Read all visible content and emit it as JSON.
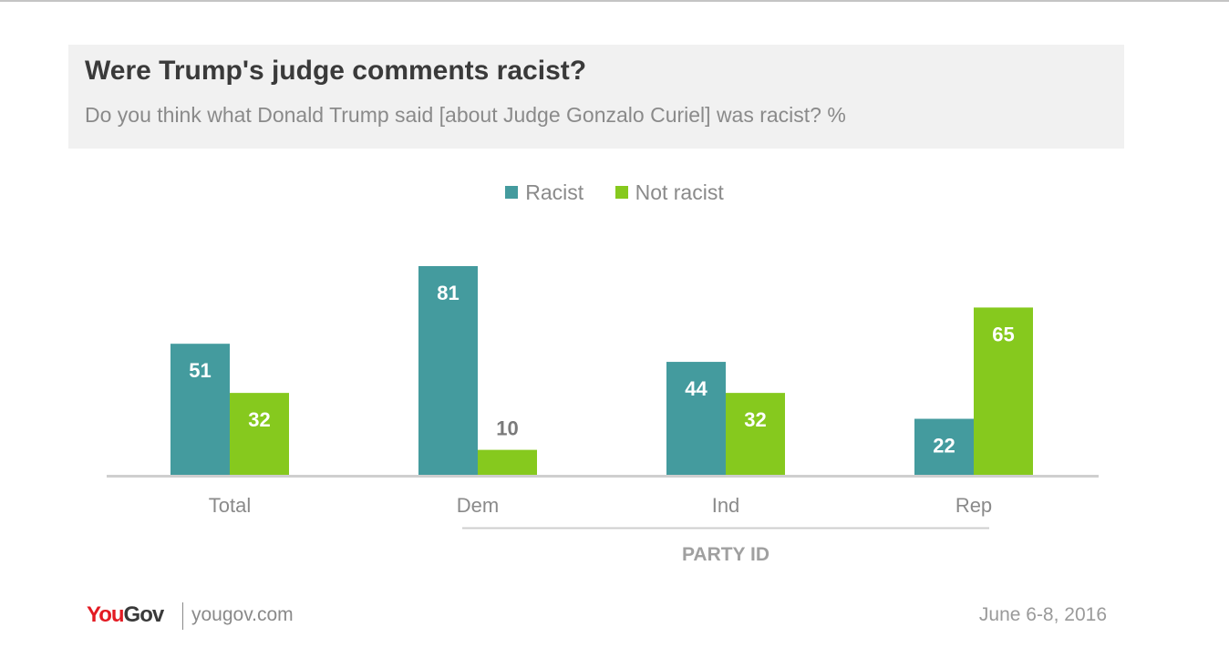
{
  "header": {
    "title": "Were Trump's judge comments racist?",
    "subtitle": "Do you think what Donald Trump said [about Judge Gonzalo Curiel] was racist? %"
  },
  "legend": {
    "items": [
      {
        "label": "Racist",
        "color": "#449b9e"
      },
      {
        "label": "Not racist",
        "color": "#86c91e"
      }
    ]
  },
  "chart_data": {
    "type": "bar",
    "categories": [
      "Total",
      "Dem",
      "Ind",
      "Rep"
    ],
    "series": [
      {
        "name": "Racist",
        "values": [
          51,
          81,
          44,
          22
        ],
        "color": "#449b9e"
      },
      {
        "name": "Not racist",
        "values": [
          32,
          10,
          32,
          65
        ],
        "color": "#86c91e"
      }
    ],
    "group_label": "PARTY ID",
    "ylim": [
      0,
      81
    ],
    "grid": false,
    "legend_position": "top"
  },
  "footer": {
    "logo_part1": "You",
    "logo_part2": "Gov",
    "site": "yougov.com",
    "date": "June 6-8, 2016"
  }
}
